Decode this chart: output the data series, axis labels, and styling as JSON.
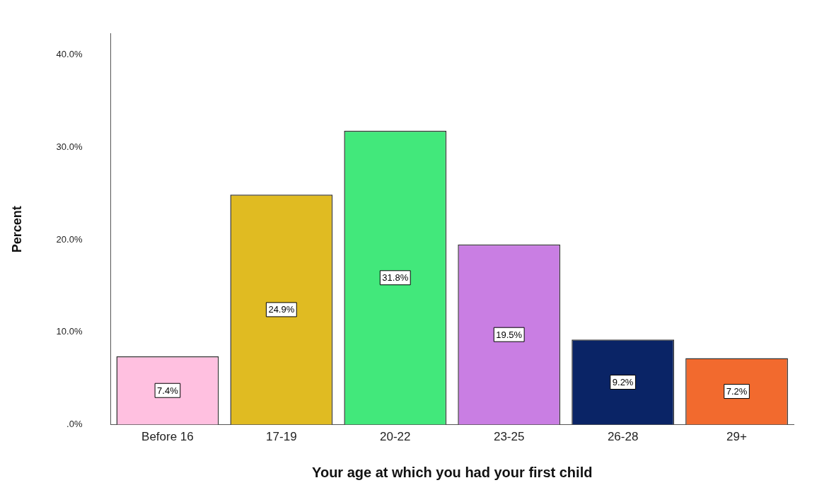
{
  "chart_data": {
    "type": "bar",
    "xlabel": "Your age at which you had your first child",
    "ylabel": "Percent",
    "categories": [
      "Before 16",
      "17-19",
      "20-22",
      "23-25",
      "26-28",
      "29+"
    ],
    "values": [
      7.4,
      24.9,
      31.8,
      19.5,
      9.2,
      7.2
    ],
    "colors": [
      "#ffc0e0",
      "#e0bb22",
      "#42e87b",
      "#c97ee3",
      "#0a2466",
      "#f26a2e"
    ],
    "value_labels": [
      "7.4%",
      "24.9%",
      "31.8%",
      "19.5%",
      "9.2%",
      "7.2%"
    ],
    "ylim": [
      0,
      42.3
    ],
    "yticks": [
      {
        "value": 0,
        "label": ".0%"
      },
      {
        "value": 10,
        "label": "10.0%"
      },
      {
        "value": 20,
        "label": "20.0%"
      },
      {
        "value": 30,
        "label": "30.0%"
      },
      {
        "value": 40,
        "label": "40.0%"
      }
    ],
    "grid": false,
    "legend": false
  }
}
